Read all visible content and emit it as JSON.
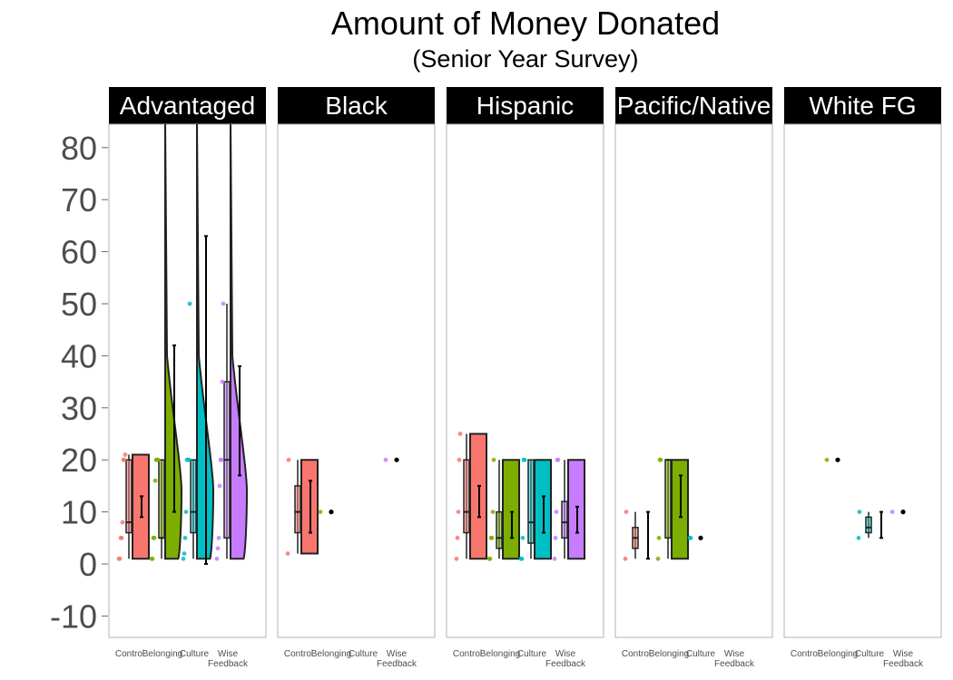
{
  "chart_data": {
    "type": "violin",
    "title": "Amount of Money Donated",
    "subtitle": "(Senior Year Survey)",
    "xlabel": "",
    "ylabel": "",
    "ylim": [
      -15,
      85
    ],
    "yticks": [
      80,
      70,
      60,
      50,
      40,
      30,
      20,
      10,
      0,
      -10
    ],
    "ytick_labels": [
      "80",
      "70",
      "60",
      "50",
      "40",
      "30",
      "20",
      "10",
      "0",
      "-10"
    ],
    "categories": [
      "Control",
      "Belonging",
      "Culture",
      "Wise Feedback"
    ],
    "category_lines": [
      [
        "Control"
      ],
      [
        "Belonging"
      ],
      [
        "Culture"
      ],
      [
        "Wise",
        "Feedback"
      ]
    ],
    "grid": false,
    "legend": "none",
    "colors": {
      "Control": "#F8766D",
      "Belonging": "#7CAE00",
      "Culture": "#00BFC4",
      "Wise Feedback": "#C77CFF"
    },
    "facets": [
      {
        "name": "Advantaged",
        "groups": [
          {
            "category": "Control",
            "points": [
              1,
              1,
              5,
              5,
              8,
              20,
              20,
              21
            ],
            "box": [
              1,
              6,
              8,
              20,
              21
            ],
            "violin": [
              1,
              21
            ],
            "mean": 11,
            "ci": [
              9,
              13
            ]
          },
          {
            "category": "Belonging",
            "points": [
              1,
              1,
              5,
              5,
              16,
              20,
              20,
              20
            ],
            "box": [
              1,
              5,
              5,
              20,
              20
            ],
            "violin": [
              1,
              85
            ],
            "mean": 26,
            "ci": [
              10,
              42
            ]
          },
          {
            "category": "Culture",
            "points": [
              1,
              2,
              5,
              10,
              20,
              20,
              20,
              50
            ],
            "box": [
              1,
              6,
              10,
              20,
              20
            ],
            "violin": [
              1,
              85
            ],
            "mean": 30,
            "ci": [
              0,
              63
            ]
          },
          {
            "category": "Wise Feedback",
            "points": [
              1,
              3,
              5,
              15,
              20,
              20,
              35,
              50
            ],
            "box": [
              1,
              5,
              20,
              35,
              50
            ],
            "violin": [
              1,
              85
            ],
            "mean": 27,
            "ci": [
              17,
              38
            ]
          }
        ]
      },
      {
        "name": "Black",
        "groups": [
          {
            "category": "Control",
            "points": [
              2,
              20
            ],
            "box": [
              2,
              6,
              10,
              15,
              20
            ],
            "violin": [
              2,
              20
            ],
            "mean": 11,
            "ci": [
              6,
              16
            ]
          },
          {
            "category": "Belonging",
            "points": [
              10
            ],
            "box": null,
            "violin": null,
            "mean": 10,
            "ci": null
          },
          {
            "category": "Culture",
            "points": [],
            "box": null,
            "violin": null,
            "mean": null,
            "ci": null
          },
          {
            "category": "Wise Feedback",
            "points": [
              20
            ],
            "box": null,
            "violin": null,
            "mean": 20,
            "ci": null
          }
        ]
      },
      {
        "name": "Hispanic",
        "groups": [
          {
            "category": "Control",
            "points": [
              1,
              5,
              10,
              20,
              25
            ],
            "box": [
              1,
              6,
              10,
              20,
              25
            ],
            "violin": [
              1,
              25
            ],
            "mean": 12,
            "ci": [
              9,
              15
            ]
          },
          {
            "category": "Belonging",
            "points": [
              1,
              1,
              5,
              5,
              10,
              20
            ],
            "box": [
              1,
              3,
              5,
              10,
              20
            ],
            "violin": [
              1,
              20
            ],
            "mean": 7,
            "ci": [
              5,
              10
            ]
          },
          {
            "category": "Culture",
            "points": [
              1,
              1,
              5,
              20,
              20
            ],
            "box": [
              1,
              4,
              8,
              20,
              20
            ],
            "violin": [
              1,
              20
            ],
            "mean": 10,
            "ci": [
              6,
              13
            ]
          },
          {
            "category": "Wise Feedback",
            "points": [
              1,
              5,
              10,
              20,
              20
            ],
            "box": [
              1,
              5,
              8,
              12,
              20
            ],
            "violin": [
              1,
              20
            ],
            "mean": 8,
            "ci": [
              6,
              11
            ]
          }
        ]
      },
      {
        "name": "Pacific/Native",
        "groups": [
          {
            "category": "Control",
            "points": [
              1,
              10
            ],
            "box": [
              1,
              3,
              5,
              7,
              10
            ],
            "violin": null,
            "mean": 6,
            "ci": [
              1,
              10
            ]
          },
          {
            "category": "Belonging",
            "points": [
              1,
              5,
              20,
              20
            ],
            "box": [
              1,
              5,
              20,
              20,
              20
            ],
            "violin": [
              1,
              20
            ],
            "mean": 13,
            "ci": [
              9,
              17
            ]
          },
          {
            "category": "Culture",
            "points": [
              5,
              5
            ],
            "box": null,
            "violin": null,
            "mean": 5,
            "ci": null
          },
          {
            "category": "Wise Feedback",
            "points": [],
            "box": null,
            "violin": null,
            "mean": null,
            "ci": null
          }
        ]
      },
      {
        "name": "White FG",
        "groups": [
          {
            "category": "Control",
            "points": [],
            "box": null,
            "violin": null,
            "mean": null,
            "ci": null
          },
          {
            "category": "Belonging",
            "points": [
              20
            ],
            "box": null,
            "violin": null,
            "mean": 20,
            "ci": null
          },
          {
            "category": "Culture",
            "points": [
              5,
              10
            ],
            "box": [
              5,
              6,
              7,
              9,
              10
            ],
            "violin": null,
            "mean": 7,
            "ci": [
              5,
              10
            ]
          },
          {
            "category": "Wise Feedback",
            "points": [
              10
            ],
            "box": null,
            "violin": null,
            "mean": 10,
            "ci": null
          }
        ]
      }
    ]
  }
}
